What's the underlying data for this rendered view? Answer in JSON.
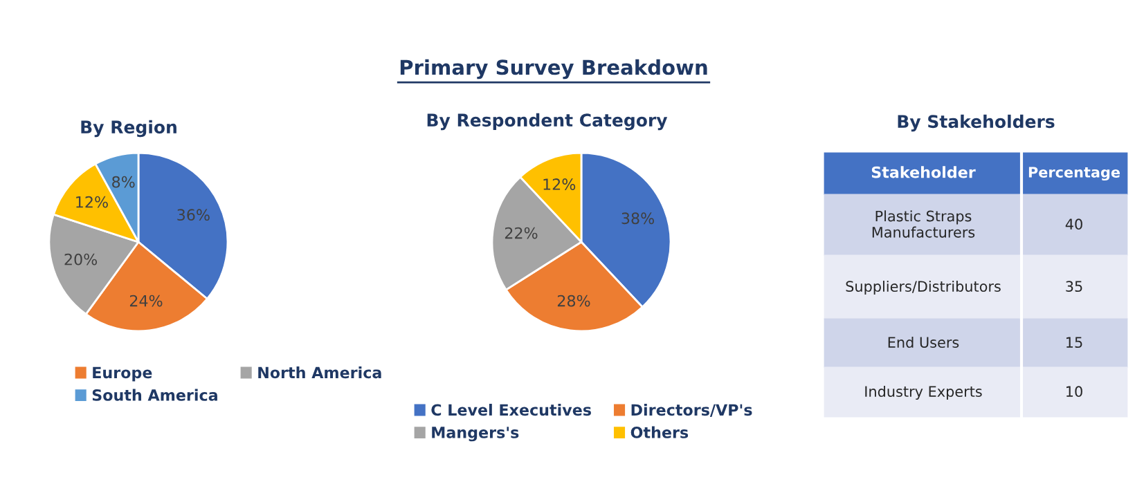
{
  "chart_data": [
    {
      "type": "pie",
      "title": "By Region",
      "categories": [
        null,
        "Europe",
        "North America",
        null,
        "South America"
      ],
      "values": [
        36,
        24,
        20,
        12,
        8
      ],
      "colors": [
        "#4472c4",
        "#ed7d31",
        "#a5a5a5",
        "#ffc000",
        "#5b9bd5"
      ],
      "value_labels": [
        "36%",
        "24%",
        "20%",
        "12%",
        "8%"
      ],
      "legend": "bottom"
    },
    {
      "type": "pie",
      "title": "Primary Survey Breakdown",
      "subtitle": "By Respondent Category",
      "categories": [
        "C Level Executives",
        "Directors/VP's",
        "Mangers's",
        "Others"
      ],
      "values": [
        38,
        28,
        22,
        12
      ],
      "colors": [
        "#4472c4",
        "#ed7d31",
        "#a5a5a5",
        "#ffc000"
      ],
      "value_labels": [
        "38%",
        "28%",
        "22%",
        "12%"
      ],
      "legend": "bottom"
    },
    {
      "type": "other",
      "title": "By Stakeholders",
      "annotations": [
        "Stakeholder",
        "Percentage"
      ],
      "categories": [
        "Plastic Straps\nManufacturers",
        "Suppliers/Distributors",
        "End Users",
        "Industry Experts"
      ],
      "values": [
        40,
        35,
        15,
        10
      ],
      "data_labels": true,
      "colors": [
        "#cfd5ea",
        "#e9ebf5",
        "#cfd5ea",
        "#e9ebf5"
      ]
    }
  ]
}
